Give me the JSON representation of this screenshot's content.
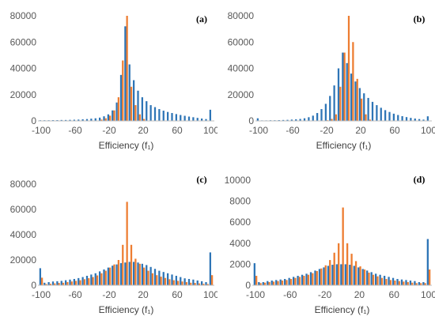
{
  "colors": {
    "series1": "#2E75B6",
    "series2": "#ED7D31",
    "axis": "#BFBFBF",
    "text": "#595959"
  },
  "chart_data": [
    {
      "type": "bar",
      "panel_label": "(a)",
      "xlabel": "Efficiency (f₁)",
      "x_ticks": [
        -100,
        -60,
        -20,
        20,
        60,
        100
      ],
      "ylim": [
        0,
        80000
      ],
      "y_ticks": [
        0,
        20000,
        40000,
        60000,
        80000
      ],
      "grid": false,
      "legend": "none",
      "x": [
        -100,
        -95,
        -90,
        -85,
        -80,
        -75,
        -70,
        -65,
        -60,
        -55,
        -50,
        -45,
        -40,
        -35,
        -30,
        -25,
        -20,
        -15,
        -10,
        -5,
        0,
        5,
        10,
        15,
        20,
        25,
        30,
        35,
        40,
        45,
        50,
        55,
        60,
        65,
        70,
        75,
        80,
        85,
        90,
        95,
        100
      ],
      "series": [
        {
          "values": [
            500,
            500,
            500,
            600,
            600,
            700,
            700,
            800,
            900,
            1000,
            1200,
            1400,
            1700,
            2000,
            2500,
            3500,
            5000,
            8000,
            14000,
            35000,
            72000,
            43000,
            31000,
            23000,
            18000,
            15000,
            12000,
            10500,
            9000,
            7800,
            6800,
            6000,
            5200,
            4500,
            3900,
            3300,
            2800,
            2300,
            1800,
            1400,
            8500
          ]
        },
        {
          "values": [
            0,
            0,
            0,
            0,
            0,
            0,
            0,
            0,
            0,
            0,
            0,
            0,
            0,
            0,
            1000,
            2000,
            4000,
            8000,
            18000,
            46000,
            80000,
            26000,
            12000,
            5000,
            1500,
            0,
            0,
            0,
            0,
            0,
            0,
            0,
            0,
            0,
            0,
            0,
            0,
            0,
            0,
            0,
            0
          ]
        }
      ]
    },
    {
      "type": "bar",
      "panel_label": "(b)",
      "xlabel": "Efficiency (f₁)",
      "x_ticks": [
        -100,
        -60,
        -20,
        20,
        60,
        100
      ],
      "ylim": [
        0,
        80000
      ],
      "y_ticks": [
        0,
        20000,
        40000,
        60000,
        80000
      ],
      "grid": false,
      "legend": "none",
      "x": [
        -100,
        -95,
        -90,
        -85,
        -80,
        -75,
        -70,
        -65,
        -60,
        -55,
        -50,
        -45,
        -40,
        -35,
        -30,
        -25,
        -20,
        -15,
        -10,
        -5,
        0,
        5,
        10,
        15,
        20,
        25,
        30,
        35,
        40,
        45,
        50,
        55,
        60,
        65,
        70,
        75,
        80,
        85,
        90,
        95,
        100
      ],
      "series": [
        {
          "values": [
            2000,
            400,
            400,
            500,
            500,
            600,
            700,
            800,
            1000,
            1200,
            1500,
            2000,
            2800,
            4000,
            6000,
            9000,
            13000,
            19000,
            27000,
            40000,
            52000,
            44000,
            36000,
            30000,
            25000,
            21000,
            17500,
            14500,
            12000,
            10000,
            8200,
            6800,
            5500,
            4500,
            3600,
            2900,
            2300,
            1800,
            1400,
            1000,
            3500
          ]
        },
        {
          "values": [
            0,
            0,
            0,
            0,
            0,
            0,
            0,
            0,
            0,
            0,
            0,
            0,
            0,
            0,
            0,
            0,
            500,
            1500,
            5000,
            26000,
            52000,
            80000,
            60000,
            32000,
            17000,
            5000,
            1000,
            0,
            0,
            0,
            0,
            0,
            0,
            0,
            0,
            0,
            0,
            0,
            0,
            0,
            0
          ]
        }
      ]
    },
    {
      "type": "bar",
      "panel_label": "(c)",
      "xlabel": "Efficiency (f₁)",
      "x_ticks": [
        -100,
        -60,
        -20,
        20,
        60,
        100
      ],
      "ylim": [
        0,
        80000
      ],
      "y_ticks": [
        0,
        20000,
        40000,
        60000,
        80000
      ],
      "grid": false,
      "legend": "none",
      "x": [
        -100,
        -95,
        -90,
        -85,
        -80,
        -75,
        -70,
        -65,
        -60,
        -55,
        -50,
        -45,
        -40,
        -35,
        -30,
        -25,
        -20,
        -15,
        -10,
        -5,
        0,
        5,
        10,
        15,
        20,
        25,
        30,
        35,
        40,
        45,
        50,
        55,
        60,
        65,
        70,
        75,
        80,
        85,
        90,
        95,
        100
      ],
      "series": [
        {
          "values": [
            13500,
            2000,
            2500,
            3000,
            3200,
            3500,
            4000,
            4500,
            5000,
            5700,
            6500,
            7500,
            8500,
            9500,
            11000,
            12500,
            14000,
            15500,
            16500,
            17500,
            18000,
            18500,
            18500,
            18000,
            17000,
            16000,
            14500,
            13000,
            11500,
            10500,
            9500,
            8500,
            7500,
            6500,
            5500,
            5000,
            4500,
            3800,
            3200,
            2500,
            26000
          ]
        },
        {
          "values": [
            6000,
            1000,
            1200,
            1500,
            1800,
            2000,
            2500,
            3000,
            3500,
            4000,
            4800,
            5600,
            6500,
            7800,
            9500,
            11500,
            14000,
            16500,
            20000,
            32000,
            66000,
            32000,
            21000,
            17000,
            14000,
            11500,
            9500,
            8000,
            6800,
            5800,
            4800,
            4000,
            3500,
            3000,
            2500,
            2000,
            1800,
            1500,
            1200,
            1000,
            8000
          ]
        }
      ]
    },
    {
      "type": "bar",
      "panel_label": "(d)",
      "xlabel": "Efficiency (f₁)",
      "x_ticks": [
        -100,
        -60,
        -20,
        20,
        60,
        100
      ],
      "ylim": [
        0,
        10000
      ],
      "y_ticks": [
        0,
        2000,
        4000,
        6000,
        8000,
        10000
      ],
      "grid": false,
      "legend": "none",
      "x": [
        -100,
        -95,
        -90,
        -85,
        -80,
        -75,
        -70,
        -65,
        -60,
        -55,
        -50,
        -45,
        -40,
        -35,
        -30,
        -25,
        -20,
        -15,
        -10,
        -5,
        0,
        5,
        10,
        15,
        20,
        25,
        30,
        35,
        40,
        45,
        50,
        55,
        60,
        65,
        70,
        75,
        80,
        85,
        90,
        95,
        100
      ],
      "series": [
        {
          "values": [
            2100,
            300,
            300,
            400,
            450,
            500,
            550,
            600,
            700,
            800,
            900,
            1000,
            1100,
            1250,
            1400,
            1550,
            1700,
            1850,
            1950,
            2000,
            2000,
            2000,
            1950,
            1850,
            1700,
            1550,
            1400,
            1250,
            1100,
            1000,
            900,
            800,
            700,
            600,
            550,
            500,
            450,
            400,
            300,
            300,
            4400
          ]
        },
        {
          "values": [
            900,
            200,
            250,
            300,
            350,
            400,
            450,
            500,
            600,
            700,
            800,
            900,
            1000,
            1150,
            1350,
            1600,
            1900,
            2400,
            3100,
            4000,
            7400,
            4000,
            3000,
            2300,
            1800,
            1500,
            1200,
            1000,
            850,
            700,
            600,
            500,
            450,
            400,
            350,
            300,
            250,
            200,
            200,
            200,
            1500
          ]
        }
      ]
    }
  ]
}
